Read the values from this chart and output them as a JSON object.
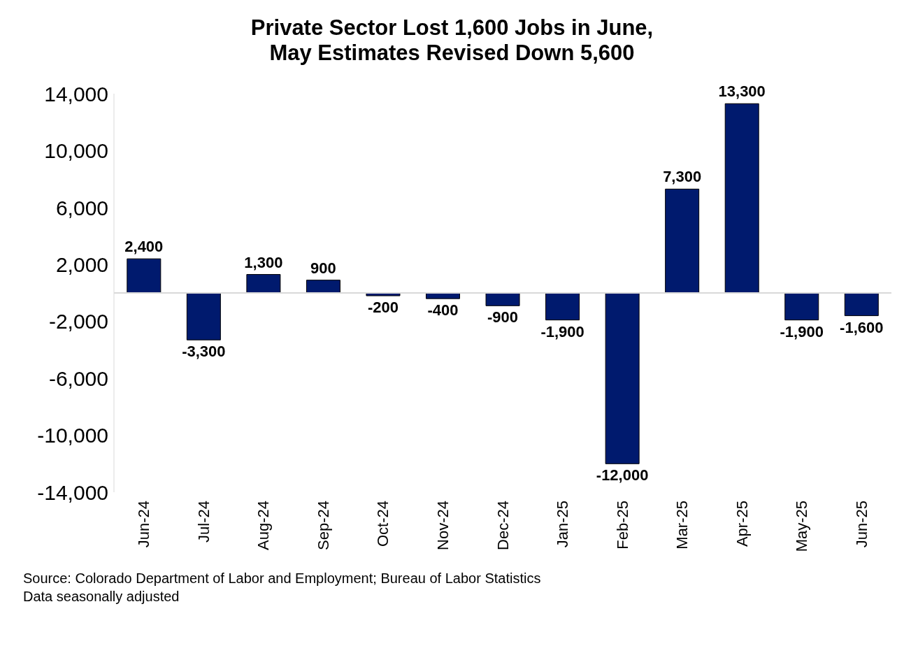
{
  "chart_data": {
    "type": "bar",
    "title": "Private Sector Lost 1,600 Jobs in June,\nMay Estimates Revised Down 5,600",
    "categories": [
      "Jun-24",
      "Jul-24",
      "Aug-24",
      "Sep-24",
      "Oct-24",
      "Nov-24",
      "Dec-24",
      "Jan-25",
      "Feb-25",
      "Mar-25",
      "Apr-25",
      "May-25",
      "Jun-25"
    ],
    "values": [
      2400,
      -3300,
      1300,
      900,
      -200,
      -400,
      -900,
      -1900,
      -12000,
      7300,
      13300,
      -1900,
      -1600
    ],
    "color": "#001a6e",
    "ylim": [
      -14000,
      14000
    ],
    "yticks": [
      {
        "value": -14000,
        "label": "-14,000"
      },
      {
        "value": -10000,
        "label": "-10,000"
      },
      {
        "value": -6000,
        "label": "-6,000"
      },
      {
        "value": -2000,
        "label": "-2,000"
      },
      {
        "value": 2000,
        "label": "2,000"
      },
      {
        "value": 6000,
        "label": "6,000"
      },
      {
        "value": 10000,
        "label": "10,000"
      },
      {
        "value": 14000,
        "label": "14,000"
      }
    ],
    "value_labels": [
      "2,400",
      "-3,300",
      "1,300",
      "900",
      "-200",
      "-400",
      "-900",
      "-1,900",
      "-12,000",
      "7,300",
      "13,300",
      "-1,900",
      "-1,600"
    ],
    "grid": false,
    "legend": false,
    "annotations": [
      "Source: Colorado Department of Labor and Employment; Bureau of Labor Statistics",
      "Data seasonally adjusted"
    ]
  }
}
